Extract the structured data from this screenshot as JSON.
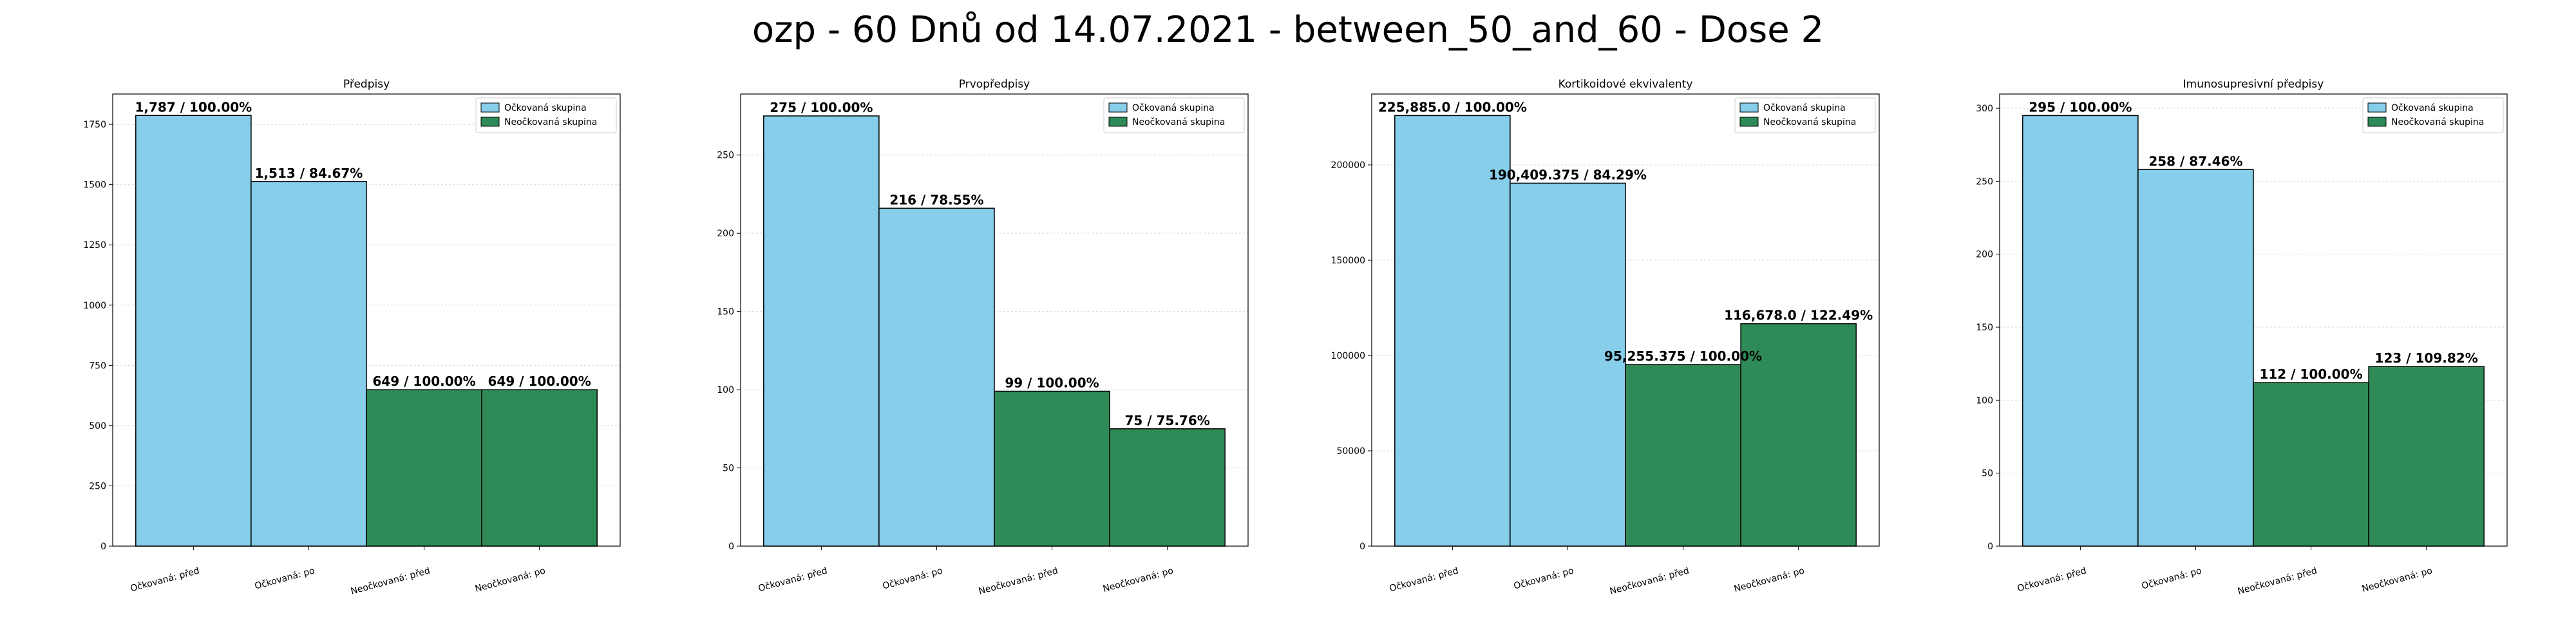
{
  "suptitle": "ozp - 60 Dnů od 14.07.2021 - between_50_and_60 - Dose 2",
  "colors": {
    "vaccinated": "#87ceeb",
    "unvaccinated": "#2e8b57",
    "edge": "#000000",
    "grid": "#d9d9d9"
  },
  "legend": {
    "placement": "top-right",
    "entries": [
      {
        "label": "Očkovaná skupina",
        "color": "#87ceeb"
      },
      {
        "label": "Neočkovaná skupina",
        "color": "#2e8b57"
      }
    ]
  },
  "chart_data": [
    {
      "type": "bar",
      "title": "Předpisy",
      "categories": [
        "Očkovaná: před",
        "Očkovaná: po",
        "Neočkovaná: před",
        "Neočkovaná: po"
      ],
      "values": [
        1787,
        1513,
        649,
        649
      ],
      "data_labels": [
        "1,787 / 100.00%",
        "1,513 / 84.67%",
        "649 / 100.00%",
        "649 / 100.00%"
      ],
      "ylim": [
        0,
        1876
      ],
      "yticks": [
        0,
        250,
        500,
        750,
        1000,
        1250,
        1500,
        1750
      ],
      "ytick_labels": [
        "0",
        "250",
        "500",
        "750",
        "1000",
        "1250",
        "1500",
        "1750"
      ],
      "grid": true
    },
    {
      "type": "bar",
      "title": "Prvopředpisy",
      "categories": [
        "Očkovaná: před",
        "Očkovaná: po",
        "Neočkovaná: před",
        "Neočkovaná: po"
      ],
      "values": [
        275,
        216,
        99,
        75
      ],
      "data_labels": [
        "275 / 100.00%",
        "216 / 78.55%",
        "99 / 100.00%",
        "75 / 75.76%"
      ],
      "ylim": [
        0,
        289
      ],
      "yticks": [
        0,
        50,
        100,
        150,
        200,
        250
      ],
      "ytick_labels": [
        "0",
        "50",
        "100",
        "150",
        "200",
        "250"
      ],
      "grid": true
    },
    {
      "type": "bar",
      "title": "Kortikoidové ekvivalenty",
      "categories": [
        "Očkovaná: před",
        "Očkovaná: po",
        "Neočkovaná: před",
        "Neočkovaná: po"
      ],
      "values": [
        225885.0,
        190409.375,
        95255.375,
        116678.0
      ],
      "data_labels": [
        "225,885.0 / 100.00%",
        "190,409.375 / 84.29%",
        "95,255.375 / 100.00%",
        "116,678.0 / 122.49%"
      ],
      "ylim": [
        0,
        237179
      ],
      "yticks": [
        0,
        50000,
        100000,
        150000,
        200000
      ],
      "ytick_labels": [
        "0",
        "50000",
        "100000",
        "150000",
        "200000"
      ],
      "grid": true
    },
    {
      "type": "bar",
      "title": "Imunosupresivní předpisy",
      "categories": [
        "Očkovaná: před",
        "Očkovaná: po",
        "Neočkovaná: před",
        "Neočkovaná: po"
      ],
      "values": [
        295,
        258,
        112,
        123
      ],
      "data_labels": [
        "295 / 100.00%",
        "258 / 87.46%",
        "112 / 100.00%",
        "123 / 109.82%"
      ],
      "ylim": [
        0,
        309.75
      ],
      "yticks": [
        0,
        50,
        100,
        150,
        200,
        250,
        300
      ],
      "ytick_labels": [
        "0",
        "50",
        "100",
        "150",
        "200",
        "250",
        "300"
      ],
      "grid": true
    }
  ]
}
